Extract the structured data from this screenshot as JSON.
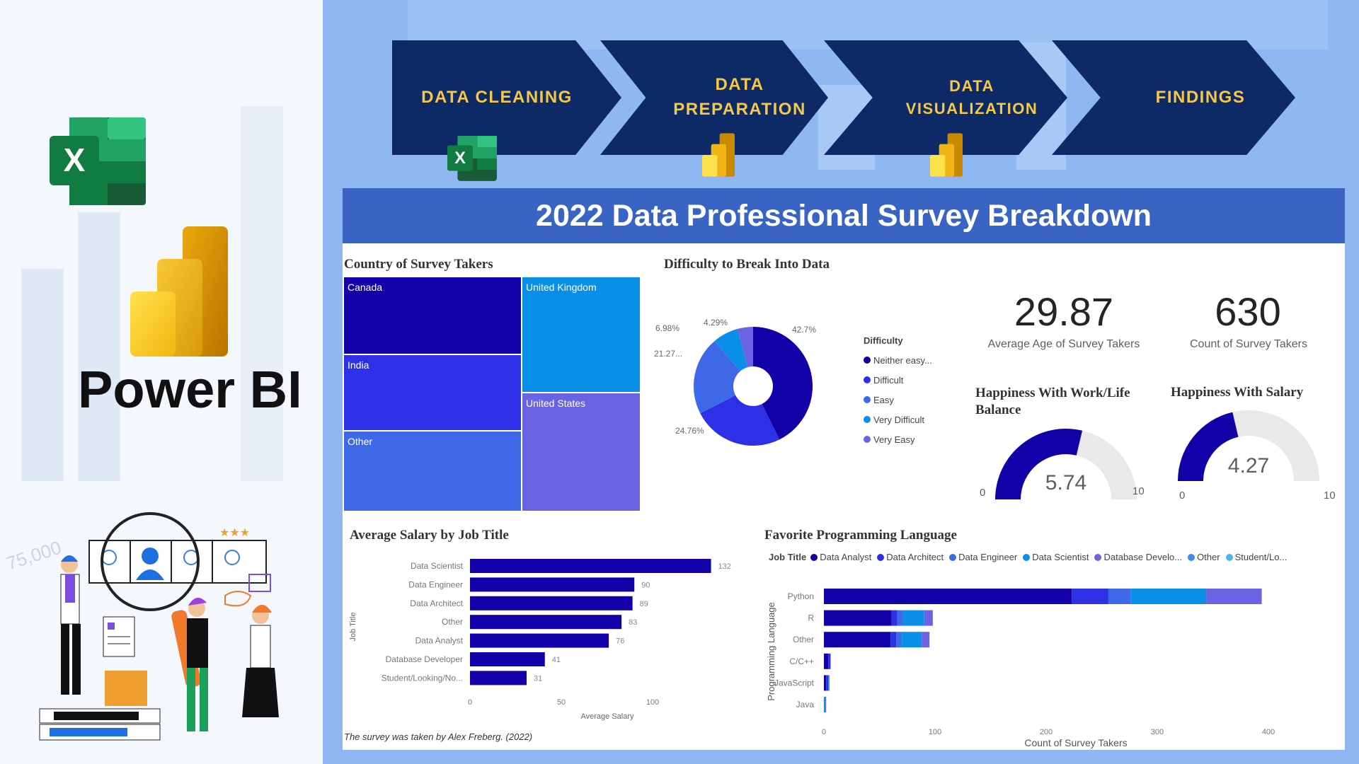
{
  "branding": {
    "power_bi_label": "Power BI",
    "excel_icon": "excel-icon",
    "powerbi_icon": "power-bi-icon",
    "illustration": "analytics-team-illustration",
    "bg_number": "75,000"
  },
  "pipeline": {
    "steps": [
      {
        "label": "DATA CLEANING",
        "line1": "DATA CLEANING",
        "line2": "",
        "icon": "excel-icon"
      },
      {
        "label": "DATA PREPARATION",
        "line1": "DATA",
        "line2": "PREPARATION",
        "icon": "power-bi-icon"
      },
      {
        "label": "DATA VISUALIZATION",
        "line1": "DATA",
        "line2": "VISUALIZATION",
        "icon": "power-bi-icon"
      },
      {
        "label": "FINDINGS",
        "line1": "FINDINGS",
        "line2": "",
        "icon": ""
      }
    ],
    "arrow_color": "#0e2a66",
    "text_color": "#f7c846"
  },
  "dashboard": {
    "title": "2022 Data Professional Survey Breakdown",
    "header_color": "#3a64c4",
    "treemap": {
      "title": "Country of Survey Takers",
      "items": [
        {
          "label": "Canada",
          "color": "#1200a8"
        },
        {
          "label": "India",
          "color": "#2e30e8"
        },
        {
          "label": "Other",
          "color": "#3f68e8"
        },
        {
          "label": "United Kingdom",
          "color": "#0a8fe8"
        },
        {
          "label": "United States",
          "color": "#6a63e3"
        }
      ]
    },
    "donut": {
      "title": "Difficulty to Break Into Data",
      "legend_title": "Difficulty",
      "slices": [
        {
          "name": "Neither easy...",
          "value": 42.7,
          "label": "42.7%",
          "color": "#1200a8"
        },
        {
          "name": "Difficult",
          "value": 24.76,
          "label": "24.76%",
          "color": "#2e30e8"
        },
        {
          "name": "Easy",
          "value": 21.27,
          "label": "21.27...",
          "color": "#3f68e8"
        },
        {
          "name": "Very Difficult",
          "value": 6.98,
          "label": "6.98%",
          "color": "#0a8fe8"
        },
        {
          "name": "Very Easy",
          "value": 4.29,
          "label": "4.29%",
          "color": "#6a63e3"
        }
      ]
    },
    "kpis": {
      "avg_age": {
        "value": "29.87",
        "label": "Average Age of Survey Takers"
      },
      "count": {
        "value": "630",
        "label": "Count of Survey Takers"
      }
    },
    "gauges": {
      "work_life": {
        "title_line1": "Happiness With Work/Life",
        "title_line2": "Balance",
        "value": 5.74,
        "value_label": "5.74",
        "min": "0",
        "max": "10"
      },
      "salary": {
        "title": "Happiness With Salary",
        "value": 4.27,
        "value_label": "4.27",
        "min": "0",
        "max": "10"
      }
    },
    "salary_chart": {
      "title": "Average Salary by Job Title",
      "xlabel": "Average Salary",
      "ylabel": "Job Title",
      "xticks": [
        "0",
        "50",
        "100"
      ],
      "xmax": 132,
      "bars": [
        {
          "label": "Data Scientist",
          "value": 132,
          "value_label": "132"
        },
        {
          "label": "Data Engineer",
          "value": 90,
          "value_label": "90"
        },
        {
          "label": "Data Architect",
          "value": 89,
          "value_label": "89"
        },
        {
          "label": "Other",
          "value": 83,
          "value_label": "83"
        },
        {
          "label": "Data Analyst",
          "value": 76,
          "value_label": "76"
        },
        {
          "label": "Database Developer",
          "value": 41,
          "value_label": "41"
        },
        {
          "label": "Student/Looking/No...",
          "value": 31,
          "value_label": "31"
        }
      ],
      "bar_color": "#1200a8"
    },
    "language_chart": {
      "title": "Favorite Programming Language",
      "legend_title": "Job Title",
      "legend": [
        {
          "name": "Data Analyst",
          "color": "#1200a8"
        },
        {
          "name": "Data Architect",
          "color": "#2e30e8"
        },
        {
          "name": "Data Engineer",
          "color": "#3f68e8"
        },
        {
          "name": "Data Scientist",
          "color": "#0a8fe8"
        },
        {
          "name": "Database Develo...",
          "color": "#6a63e3"
        },
        {
          "name": "Other",
          "color": "#3f8de8"
        },
        {
          "name": "Student/Lo...",
          "color": "#4fb4e8"
        }
      ],
      "xlabel": "Count of Survey Takers",
      "ylabel": "Programming Language",
      "xticks": [
        "0",
        "100",
        "200",
        "300",
        "400"
      ],
      "xmax": 400,
      "rows": [
        {
          "label": "Python",
          "segments": [
            223,
            33,
            20,
            68,
            50,
            0,
            0
          ]
        },
        {
          "label": "R",
          "segments": [
            61,
            5,
            5,
            19,
            8,
            0,
            0
          ]
        },
        {
          "label": "Other",
          "segments": [
            60,
            5,
            5,
            18,
            7,
            0,
            0
          ]
        },
        {
          "label": "C/C++",
          "segments": [
            4,
            2,
            0,
            0,
            0,
            0,
            0
          ]
        },
        {
          "label": "JavaScript",
          "segments": [
            2,
            2,
            0,
            1,
            0,
            0,
            0
          ]
        },
        {
          "label": "Java",
          "segments": [
            0,
            0,
            0,
            1,
            1,
            0,
            0
          ]
        }
      ]
    },
    "footnote": "The survey was taken by Alex Freberg. (2022)"
  }
}
